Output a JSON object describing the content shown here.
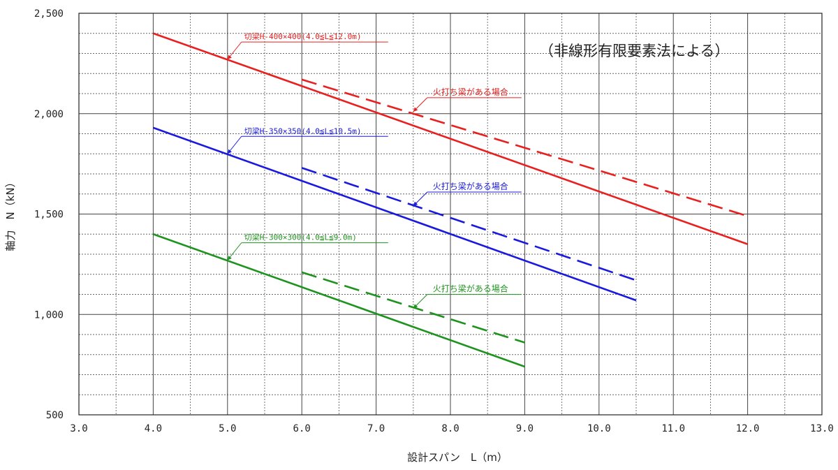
{
  "chart_data": {
    "type": "line",
    "title": "",
    "note": "（非線形有限要素法による）",
    "xlabel": "設計スパン　L（m）",
    "ylabel": "軸力　N（kN）",
    "xlim": [
      3.0,
      13.0
    ],
    "ylim": [
      500,
      2500
    ],
    "x_ticks": [
      3.0,
      4.0,
      5.0,
      6.0,
      7.0,
      8.0,
      9.0,
      10.0,
      11.0,
      12.0,
      13.0
    ],
    "x_tick_labels": [
      "3.0",
      "4.0",
      "5.0",
      "6.0",
      "7.0",
      "8.0",
      "9.0",
      "10.0",
      "11.0",
      "12.0",
      "13.0"
    ],
    "y_ticks": [
      500,
      1000,
      1500,
      2000,
      2500
    ],
    "y_tick_labels": [
      "500",
      "1,000",
      "1,500",
      "2,000",
      "2,500"
    ],
    "grid": true,
    "series": [
      {
        "color": "#e8201f",
        "style": "solid",
        "x": [
          4.0,
          12.0
        ],
        "y": [
          2400,
          1350
        ]
      },
      {
        "color": "#e8201f",
        "style": "dashed",
        "x": [
          6.0,
          12.0
        ],
        "y": [
          2170,
          1490
        ]
      },
      {
        "color": "#1a1adf",
        "style": "solid",
        "x": [
          4.0,
          10.5
        ],
        "y": [
          1930,
          1070
        ]
      },
      {
        "color": "#1a1adf",
        "style": "dashed",
        "x": [
          6.0,
          10.5
        ],
        "y": [
          1730,
          1170
        ]
      },
      {
        "color": "#1f931f",
        "style": "solid",
        "x": [
          4.0,
          9.0
        ],
        "y": [
          1400,
          740
        ]
      },
      {
        "color": "#1f931f",
        "style": "dashed",
        "x": [
          6.0,
          9.0
        ],
        "y": [
          1210,
          860
        ]
      }
    ],
    "annotations": [
      {
        "text": "切梁H-400×400(4.0≦L≦12.0m)",
        "color": "#e8201f",
        "point": [
          5.0,
          2270
        ]
      },
      {
        "text": "火打ち梁がある場合",
        "color": "#e8201f",
        "point": [
          7.5,
          2010
        ]
      },
      {
        "text": "切梁H-350×350(4.0≦L≦10.5m)",
        "color": "#1a1adf",
        "point": [
          5.0,
          1800
        ]
      },
      {
        "text": "火打ち梁がある場合",
        "color": "#1a1adf",
        "point": [
          7.5,
          1540
        ]
      },
      {
        "text": "切梁H-300×300(4.0≦L≦9.0m)",
        "color": "#1f931f",
        "point": [
          5.0,
          1270
        ]
      },
      {
        "text": "火打ち梁がある場合",
        "color": "#1f931f",
        "point": [
          7.5,
          1030
        ]
      }
    ]
  }
}
